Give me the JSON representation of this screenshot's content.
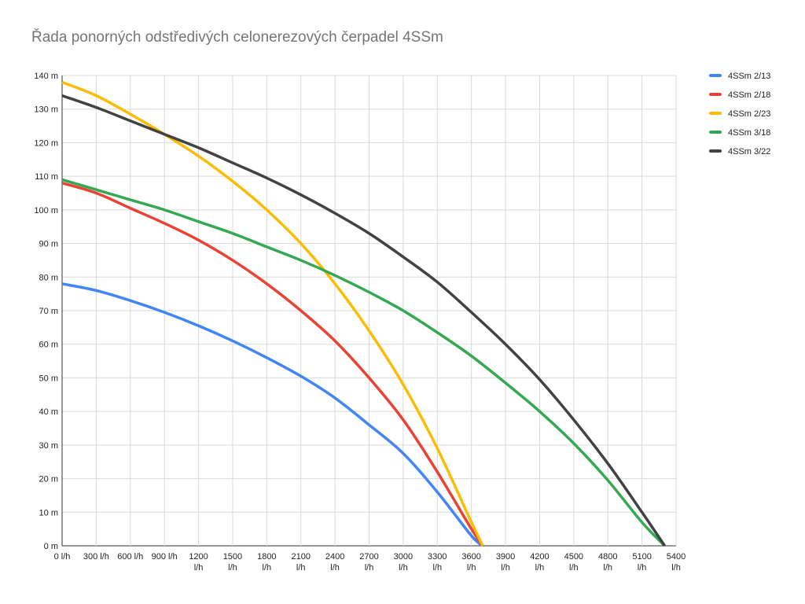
{
  "chart_data": {
    "type": "line",
    "title": "Řada ponorných odstředivých celonerezových čerpadel 4SSm",
    "xlabel": "",
    "ylabel": "",
    "xlim": [
      0,
      5400
    ],
    "ylim": [
      0,
      140
    ],
    "grid": true,
    "legend_position": "right",
    "x_ticks": [
      "0 l/h",
      "300 l/h",
      "600 l/h",
      "900 l/h",
      "1200 l/h",
      "1500 l/h",
      "1800 l/h",
      "2100 l/h",
      "2400 l/h",
      "2700 l/h",
      "3000 l/h",
      "3300 l/h",
      "3600 l/h",
      "3900 l/h",
      "4200 l/h",
      "4500 l/h",
      "4800 l/h",
      "5100 l/h",
      "5400 l/h"
    ],
    "y_ticks": [
      "0 m",
      "10 m",
      "20 m",
      "30 m",
      "40 m",
      "50 m",
      "60 m",
      "70 m",
      "80 m",
      "90 m",
      "100 m",
      "110 m",
      "120 m",
      "130 m",
      "140 m"
    ],
    "series": [
      {
        "name": "4SSm 2/13",
        "color": "#4285f4",
        "x": [
          0,
          300,
          600,
          900,
          1200,
          1500,
          1800,
          2100,
          2400,
          2700,
          3000,
          3300,
          3600,
          3700
        ],
        "y": [
          78,
          76,
          73,
          69.5,
          65.5,
          61,
          56,
          50.5,
          44,
          36,
          27.5,
          16,
          3,
          0
        ]
      },
      {
        "name": "4SSm 2/18",
        "color": "#ea4335",
        "x": [
          0,
          300,
          600,
          900,
          1200,
          1500,
          1800,
          2100,
          2400,
          2700,
          3000,
          3300,
          3600,
          3700
        ],
        "y": [
          108,
          105,
          100.5,
          96,
          91,
          85,
          78,
          70,
          61,
          50,
          37.5,
          22,
          5,
          0
        ]
      },
      {
        "name": "4SSm 2/23",
        "color": "#fbbc04",
        "x": [
          0,
          300,
          600,
          900,
          1200,
          1500,
          1800,
          2100,
          2400,
          2700,
          3000,
          3300,
          3600,
          3700
        ],
        "y": [
          138,
          134,
          128.5,
          122.5,
          116,
          108.5,
          100,
          90,
          78,
          64,
          48,
          29,
          7,
          0
        ]
      },
      {
        "name": "4SSm 3/18",
        "color": "#34a853",
        "x": [
          0,
          300,
          600,
          900,
          1200,
          1500,
          1800,
          2100,
          2400,
          2700,
          3000,
          3300,
          3600,
          3900,
          4200,
          4500,
          4800,
          5100,
          5300
        ],
        "y": [
          109,
          106,
          103,
          100,
          96.5,
          93,
          89,
          85,
          80.5,
          75.5,
          70,
          63.5,
          56.5,
          48.5,
          40,
          30.5,
          19.5,
          7,
          0
        ]
      },
      {
        "name": "4SSm 3/22",
        "color": "#424242",
        "x": [
          0,
          300,
          600,
          900,
          1200,
          1500,
          1800,
          2100,
          2400,
          2700,
          3000,
          3300,
          3600,
          3900,
          4200,
          4500,
          4800,
          5100,
          5300
        ],
        "y": [
          134,
          130.5,
          126.5,
          122.5,
          118.5,
          114,
          109.5,
          104.5,
          99,
          93,
          86,
          78.5,
          69.5,
          60,
          49.5,
          37.5,
          24.5,
          10,
          0
        ]
      }
    ]
  }
}
